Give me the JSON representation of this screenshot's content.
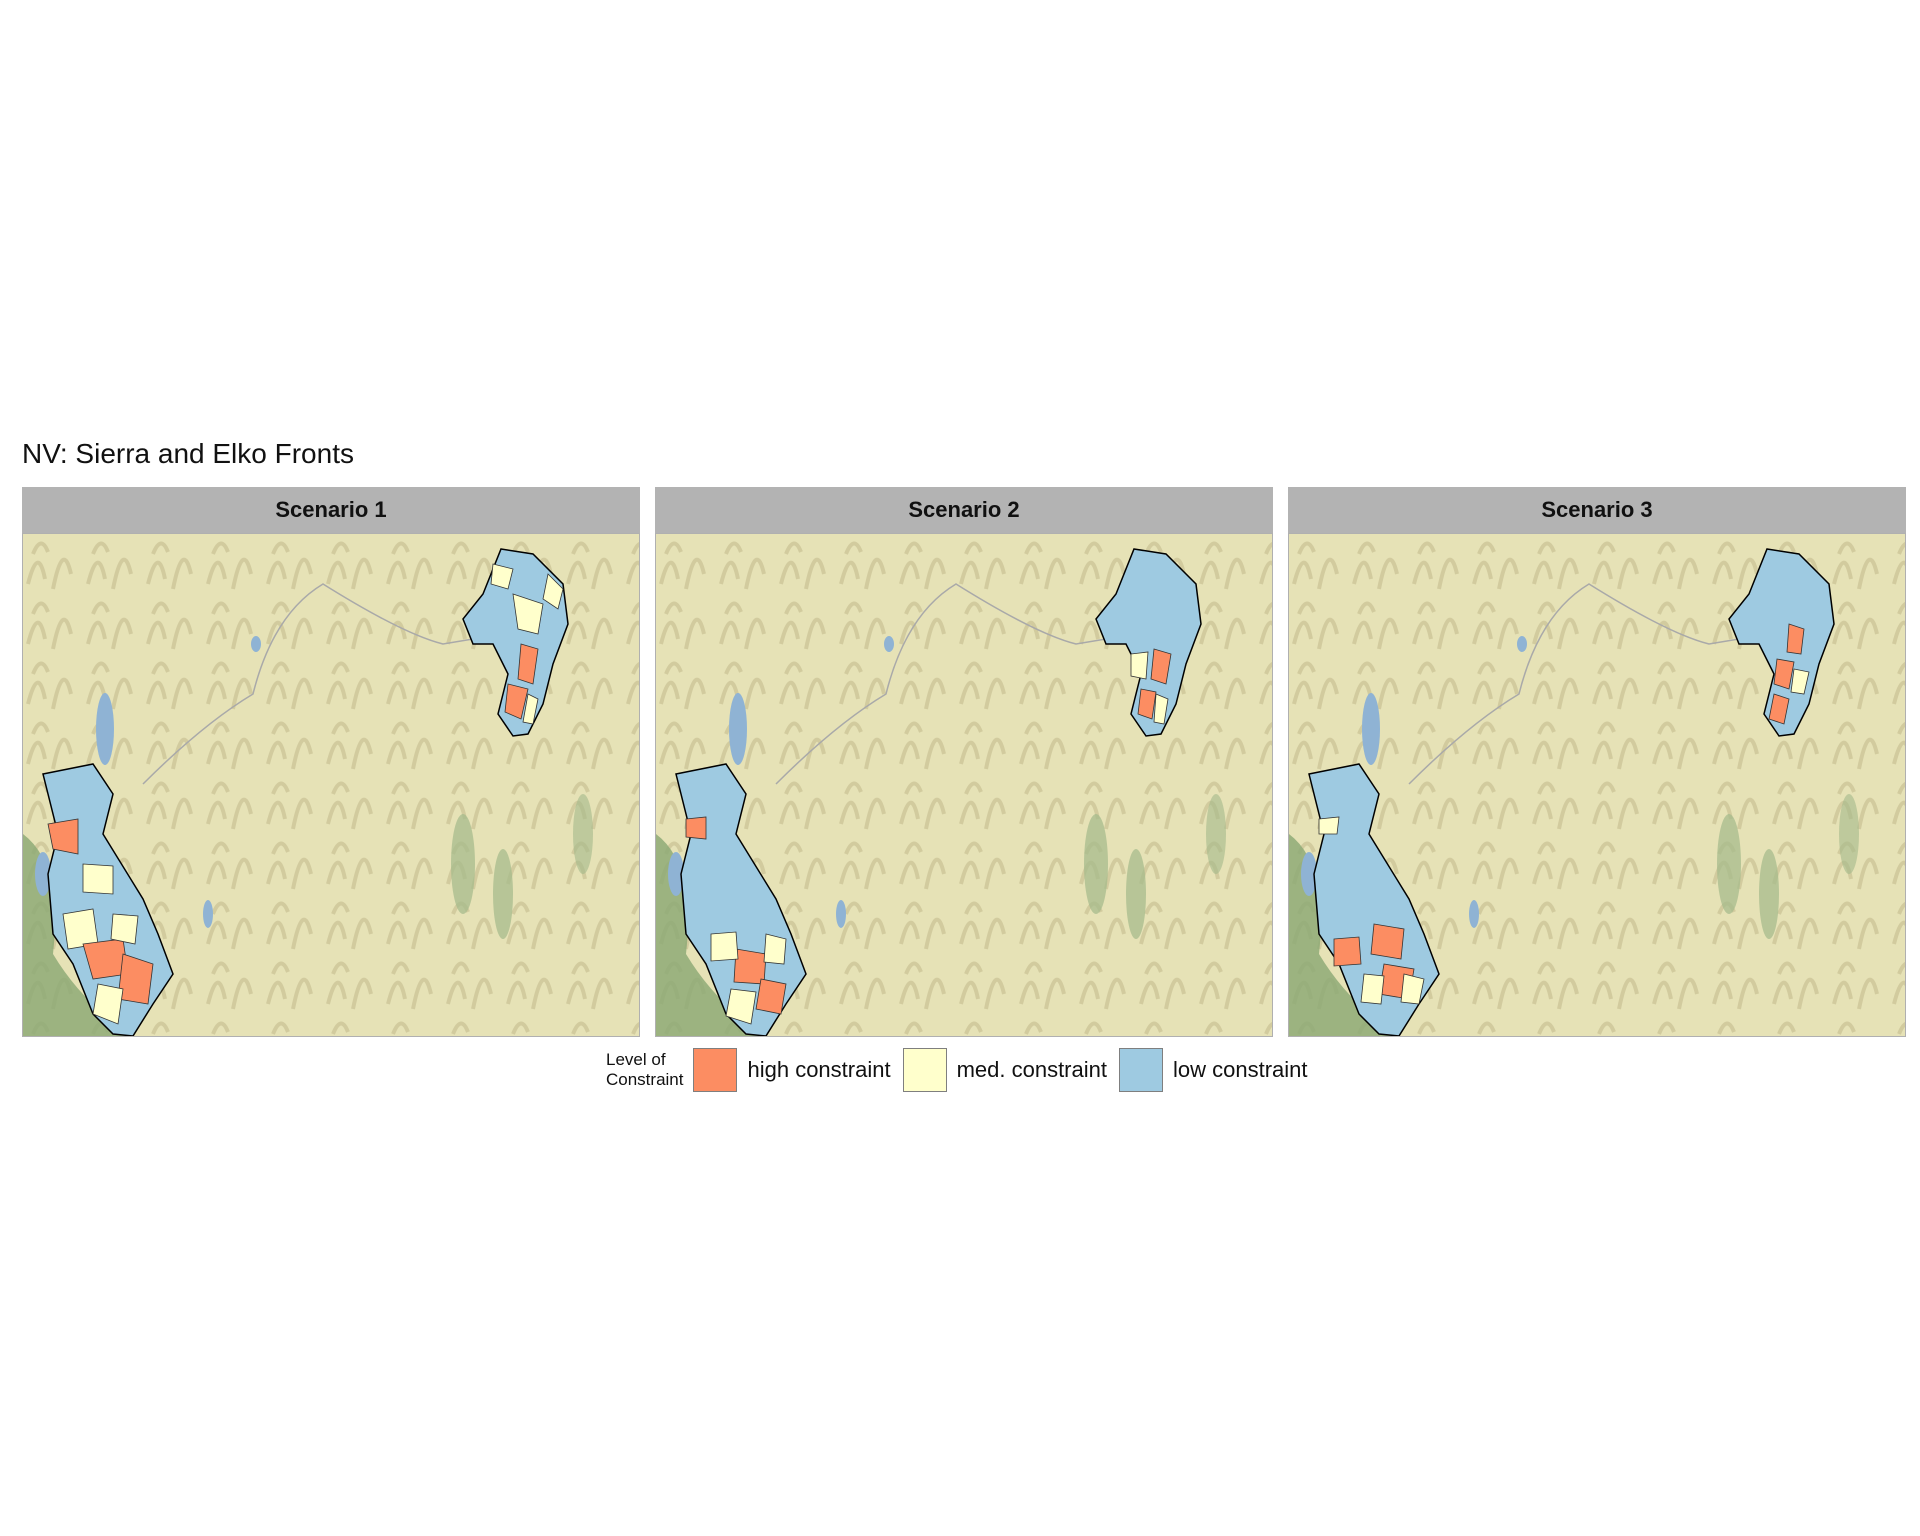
{
  "title": "NV: Sierra and Elko Fronts",
  "panels": [
    {
      "label": "Scenario 1"
    },
    {
      "label": "Scenario 2"
    },
    {
      "label": "Scenario 3"
    }
  ],
  "legend": {
    "title": "Level of Constraint",
    "title_line1": "Level of",
    "title_line2": "Constraint",
    "items": [
      {
        "label": "high constraint",
        "color": "#fc8d62"
      },
      {
        "label": "med. constraint",
        "color": "#ffffcc"
      },
      {
        "label": "low constraint",
        "color": "#9ecae1"
      }
    ]
  },
  "basemap": {
    "land_color": "#e6e2b6",
    "water_color": "#8fb3d4",
    "forest_color": "#8aa873"
  }
}
